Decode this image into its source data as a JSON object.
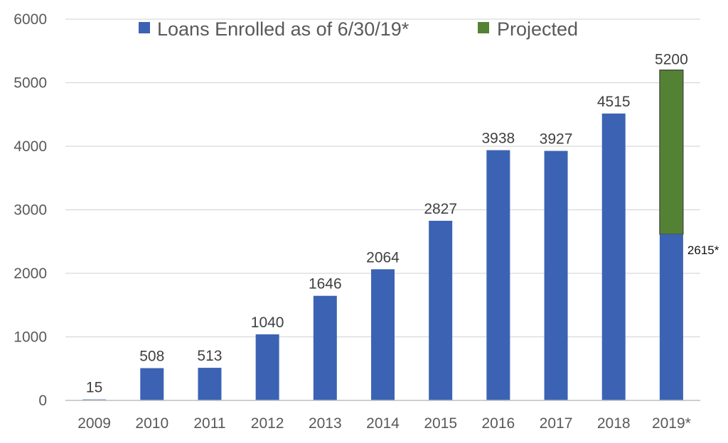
{
  "chart_data": {
    "type": "bar",
    "title": "",
    "xlabel": "",
    "ylabel": "",
    "ylim": [
      0,
      6000
    ],
    "yticks": [
      0,
      1000,
      2000,
      3000,
      4000,
      5000,
      6000
    ],
    "grid": true,
    "legend_position": "top",
    "categories": [
      "2009",
      "2010",
      "2011",
      "2012",
      "2013",
      "2014",
      "2015",
      "2016",
      "2017",
      "2018",
      "2019*"
    ],
    "series": [
      {
        "name": "Loans Enrolled as of 6/30/19*",
        "color": "#3c63b3",
        "values": [
          15,
          508,
          513,
          1040,
          1646,
          2064,
          2827,
          3938,
          3927,
          4515,
          2615
        ],
        "labels": [
          "15",
          "508",
          "513",
          "1040",
          "1646",
          "2064",
          "2827",
          "3938",
          "3927",
          "4515",
          "2615*"
        ]
      },
      {
        "name": "Projected",
        "color": "#548235",
        "stacked_from": 2615,
        "values": [
          null,
          null,
          null,
          null,
          null,
          null,
          null,
          null,
          null,
          null,
          5200
        ],
        "labels": [
          "",
          "",
          "",
          "",
          "",
          "",
          "",
          "",
          "",
          "",
          "5200"
        ]
      }
    ]
  }
}
